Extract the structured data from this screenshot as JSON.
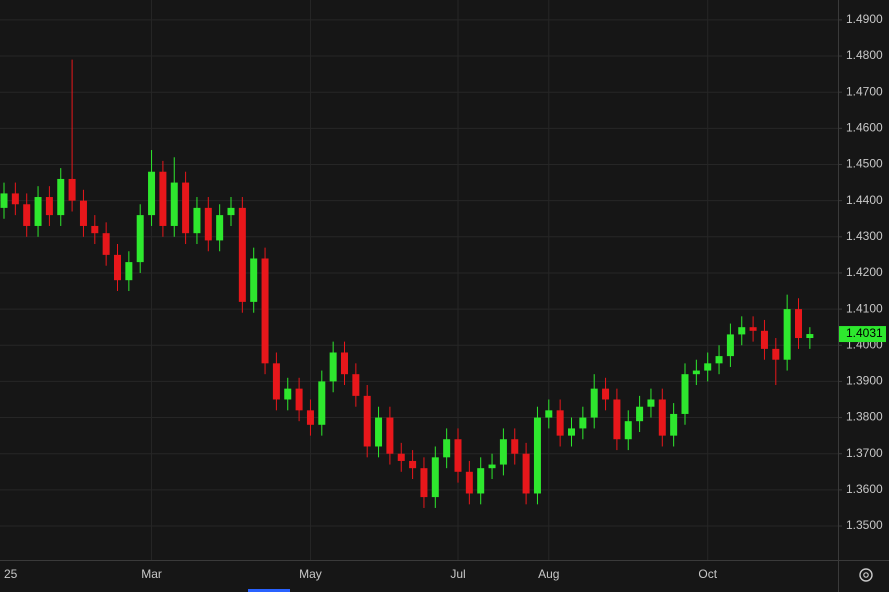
{
  "chart_data": {
    "type": "candlestick",
    "categories": [
      "25",
      null,
      null,
      null,
      null,
      null,
      null,
      null,
      null,
      null,
      null,
      null,
      null,
      "Mar",
      null,
      null,
      null,
      null,
      null,
      null,
      null,
      null,
      null,
      null,
      null,
      null,
      null,
      "May",
      null,
      null,
      null,
      null,
      null,
      null,
      null,
      null,
      null,
      null,
      null,
      null,
      "Jul",
      null,
      null,
      null,
      null,
      null,
      null,
      null,
      "Aug",
      null,
      null,
      null,
      null,
      null,
      null,
      null,
      null,
      null,
      null,
      null,
      null,
      null,
      "Oct",
      null,
      null,
      null,
      null,
      null,
      null,
      null,
      null,
      null
    ],
    "open": [
      1.438,
      1.442,
      1.439,
      1.433,
      1.441,
      1.436,
      1.446,
      1.44,
      1.433,
      1.431,
      1.425,
      1.418,
      1.423,
      1.436,
      1.448,
      1.433,
      1.445,
      1.431,
      1.438,
      1.429,
      1.436,
      1.438,
      1.412,
      1.424,
      1.395,
      1.385,
      1.388,
      1.382,
      1.378,
      1.39,
      1.398,
      1.392,
      1.386,
      1.372,
      1.38,
      1.37,
      1.368,
      1.366,
      1.358,
      1.369,
      1.374,
      1.365,
      1.359,
      1.366,
      1.367,
      1.374,
      1.37,
      1.359,
      1.38,
      1.382,
      1.375,
      1.377,
      1.38,
      1.388,
      1.385,
      1.374,
      1.379,
      1.383,
      1.385,
      1.375,
      1.381,
      1.392,
      1.393,
      1.395,
      1.397,
      1.403,
      1.405,
      1.404,
      1.399,
      1.396,
      1.41,
      1.402
    ],
    "high": [
      1.445,
      1.445,
      1.442,
      1.444,
      1.444,
      1.449,
      1.479,
      1.443,
      1.436,
      1.434,
      1.428,
      1.426,
      1.439,
      1.454,
      1.451,
      1.452,
      1.448,
      1.441,
      1.441,
      1.439,
      1.441,
      1.441,
      1.427,
      1.427,
      1.398,
      1.391,
      1.391,
      1.385,
      1.393,
      1.401,
      1.401,
      1.395,
      1.389,
      1.383,
      1.383,
      1.373,
      1.371,
      1.369,
      1.372,
      1.377,
      1.377,
      1.368,
      1.369,
      1.37,
      1.377,
      1.377,
      1.373,
      1.383,
      1.385,
      1.385,
      1.38,
      1.383,
      1.392,
      1.391,
      1.388,
      1.382,
      1.386,
      1.388,
      1.388,
      1.384,
      1.395,
      1.396,
      1.398,
      1.4,
      1.406,
      1.408,
      1.408,
      1.407,
      1.402,
      1.414,
      1.413,
      1.405
    ],
    "low": [
      1.435,
      1.436,
      1.43,
      1.43,
      1.433,
      1.433,
      1.437,
      1.43,
      1.428,
      1.422,
      1.415,
      1.415,
      1.42,
      1.433,
      1.43,
      1.43,
      1.428,
      1.428,
      1.426,
      1.426,
      1.433,
      1.409,
      1.409,
      1.392,
      1.382,
      1.382,
      1.379,
      1.375,
      1.375,
      1.387,
      1.389,
      1.383,
      1.369,
      1.369,
      1.367,
      1.365,
      1.363,
      1.355,
      1.355,
      1.366,
      1.362,
      1.356,
      1.356,
      1.363,
      1.364,
      1.367,
      1.356,
      1.356,
      1.377,
      1.372,
      1.372,
      1.374,
      1.377,
      1.382,
      1.371,
      1.371,
      1.376,
      1.38,
      1.372,
      1.372,
      1.378,
      1.389,
      1.39,
      1.392,
      1.394,
      1.4,
      1.401,
      1.396,
      1.389,
      1.393,
      1.399,
      1.399
    ],
    "close": [
      1.442,
      1.439,
      1.433,
      1.441,
      1.436,
      1.446,
      1.44,
      1.433,
      1.431,
      1.425,
      1.418,
      1.423,
      1.436,
      1.448,
      1.433,
      1.445,
      1.431,
      1.438,
      1.429,
      1.436,
      1.438,
      1.412,
      1.424,
      1.395,
      1.385,
      1.388,
      1.382,
      1.378,
      1.39,
      1.398,
      1.392,
      1.386,
      1.372,
      1.38,
      1.37,
      1.368,
      1.366,
      1.358,
      1.369,
      1.374,
      1.365,
      1.359,
      1.366,
      1.367,
      1.374,
      1.37,
      1.359,
      1.38,
      1.382,
      1.375,
      1.377,
      1.38,
      1.388,
      1.385,
      1.374,
      1.379,
      1.383,
      1.385,
      1.375,
      1.381,
      1.392,
      1.393,
      1.395,
      1.397,
      1.403,
      1.405,
      1.404,
      1.399,
      1.396,
      1.41,
      1.402,
      1.4031
    ],
    "up_color": "#2ee82e",
    "down_color": "#e8171b",
    "ylim": [
      1.3406,
      1.4955
    ],
    "yticks": [
      {
        "value": 1.35,
        "label": "1.3500"
      },
      {
        "value": 1.36,
        "label": "1.3600"
      },
      {
        "value": 1.37,
        "label": "1.3700"
      },
      {
        "value": 1.38,
        "label": "1.3800"
      },
      {
        "value": 1.39,
        "label": "1.3900"
      },
      {
        "value": 1.4,
        "label": "1.4000"
      },
      {
        "value": 1.41,
        "label": "1.4100"
      },
      {
        "value": 1.42,
        "label": "1.4200"
      },
      {
        "value": 1.43,
        "label": "1.4300"
      },
      {
        "value": 1.44,
        "label": "1.4400"
      },
      {
        "value": 1.45,
        "label": "1.4500"
      },
      {
        "value": 1.46,
        "label": "1.4600"
      },
      {
        "value": 1.47,
        "label": "1.4700"
      },
      {
        "value": 1.48,
        "label": "1.4800"
      },
      {
        "value": 1.49,
        "label": "1.4900"
      }
    ],
    "grid": true
  }
}
